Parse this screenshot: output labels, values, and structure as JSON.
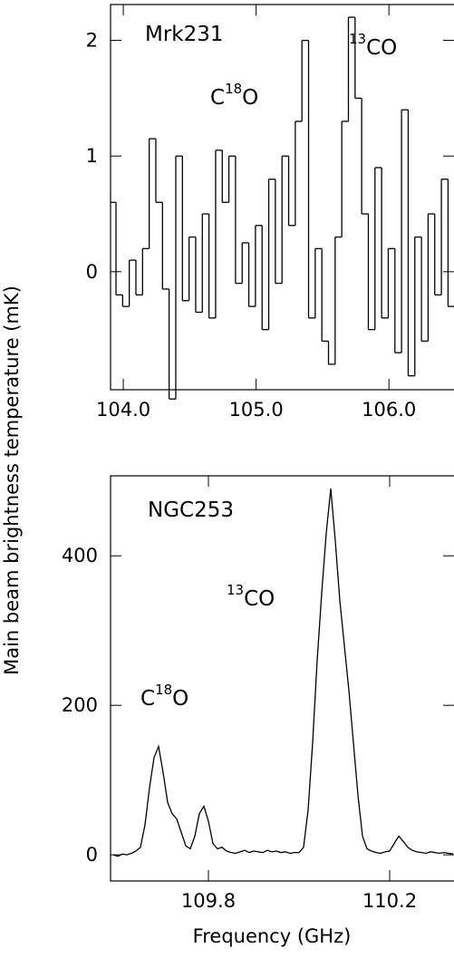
{
  "chart_data": [
    {
      "type": "step",
      "title": "Mrk231",
      "annotations": [
        {
          "base": "C",
          "sup": "18",
          "after": "O"
        },
        {
          "base": "",
          "sup": "13",
          "after": "CO"
        }
      ],
      "x": [
        103.92,
        103.97,
        104.02,
        104.07,
        104.12,
        104.17,
        104.22,
        104.27,
        104.32,
        104.37,
        104.42,
        104.47,
        104.52,
        104.57,
        104.62,
        104.67,
        104.72,
        104.77,
        104.82,
        104.87,
        104.92,
        104.97,
        105.02,
        105.07,
        105.12,
        105.17,
        105.22,
        105.27,
        105.32,
        105.37,
        105.42,
        105.47,
        105.52,
        105.57,
        105.62,
        105.67,
        105.72,
        105.77,
        105.82,
        105.87,
        105.92,
        105.97,
        106.02,
        106.07,
        106.12,
        106.17,
        106.22,
        106.27,
        106.32,
        106.37,
        106.42,
        106.47
      ],
      "values": [
        0.6,
        -0.2,
        -0.3,
        0.1,
        -0.2,
        0.2,
        1.15,
        0.6,
        -0.15,
        -1.1,
        1.0,
        -0.25,
        0.3,
        -0.35,
        0.5,
        -0.4,
        1.05,
        0.6,
        1.0,
        -0.1,
        0.25,
        -0.3,
        0.4,
        -0.5,
        0.8,
        -0.1,
        1.0,
        0.4,
        1.3,
        2.0,
        -0.4,
        0.2,
        -0.6,
        -0.8,
        0.3,
        1.3,
        2.2,
        1.5,
        0.5,
        -0.5,
        0.9,
        -0.4,
        0.2,
        -0.7,
        1.4,
        -0.9,
        0.3,
        -0.6,
        0.5,
        -0.2,
        0.8,
        -0.3
      ],
      "color": "#000000",
      "xlim": [
        103.904,
        106.49
      ],
      "ylim": [
        -1.02,
        2.31
      ],
      "xticks": [
        {
          "value": 104.0,
          "label": "104.0"
        },
        {
          "value": 105.0,
          "label": "105.0"
        },
        {
          "value": 106.0,
          "label": "106.0"
        }
      ],
      "yticks": [
        0,
        1,
        2
      ]
    },
    {
      "type": "line",
      "title": "NGC253",
      "annotations": [
        {
          "base": "",
          "sup": "13",
          "after": "CO"
        },
        {
          "base": "C",
          "sup": "18",
          "after": "O"
        }
      ],
      "x": [
        109.59,
        109.6,
        109.61,
        109.62,
        109.63,
        109.64,
        109.65,
        109.66,
        109.67,
        109.68,
        109.69,
        109.7,
        109.71,
        109.72,
        109.73,
        109.74,
        109.75,
        109.76,
        109.77,
        109.78,
        109.79,
        109.8,
        109.81,
        109.82,
        109.83,
        109.84,
        109.85,
        109.86,
        109.87,
        109.88,
        109.89,
        109.9,
        109.91,
        109.92,
        109.93,
        109.94,
        109.95,
        109.96,
        109.97,
        109.98,
        109.99,
        110.0,
        110.01,
        110.02,
        110.03,
        110.04,
        110.05,
        110.06,
        110.07,
        110.08,
        110.09,
        110.1,
        110.11,
        110.12,
        110.13,
        110.14,
        110.15,
        110.16,
        110.17,
        110.18,
        110.19,
        110.2,
        110.21,
        110.22,
        110.23,
        110.24,
        110.25,
        110.26,
        110.27,
        110.28,
        110.29,
        110.3,
        110.31,
        110.32,
        110.33,
        110.34
      ],
      "values": [
        0,
        -2,
        1,
        0,
        2,
        5,
        10,
        40,
        90,
        130,
        145,
        110,
        70,
        55,
        48,
        30,
        12,
        8,
        25,
        55,
        65,
        45,
        15,
        8,
        10,
        5,
        3,
        2,
        4,
        6,
        3,
        5,
        4,
        3,
        6,
        4,
        5,
        3,
        4,
        2,
        3,
        3,
        10,
        60,
        150,
        260,
        350,
        430,
        490,
        420,
        340,
        280,
        220,
        150,
        80,
        25,
        8,
        5,
        3,
        2,
        4,
        5,
        15,
        25,
        18,
        10,
        6,
        4,
        3,
        2,
        4,
        3,
        2,
        3,
        2,
        1
      ],
      "color": "#000000",
      "xlim": [
        109.584,
        110.342
      ],
      "ylim": [
        -35,
        507
      ],
      "xticks": [
        109.8,
        110.2
      ],
      "yticks": [
        0,
        200,
        400
      ]
    }
  ],
  "ylabel": "Main beam brightness temperature (mK)",
  "xlabel": "Frequency (GHz)"
}
